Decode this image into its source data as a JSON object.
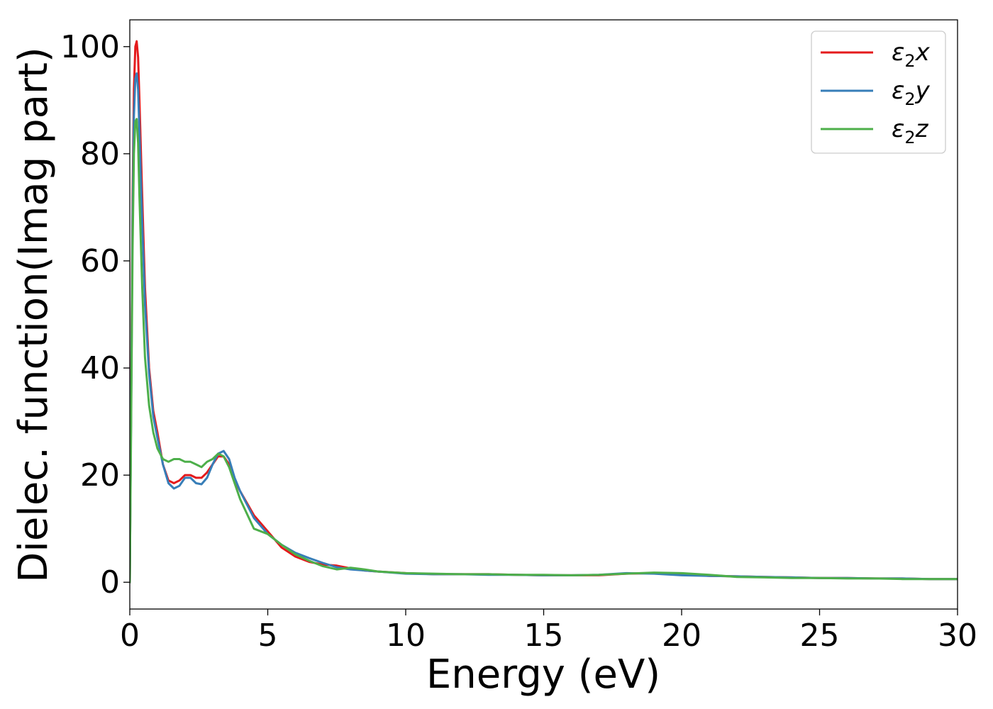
{
  "chart_data": {
    "type": "line",
    "xlabel": "Energy (eV)",
    "ylabel": "Dielec. function(Imag part)",
    "xlim": [
      0,
      30
    ],
    "ylim": [
      -5,
      105
    ],
    "xticks": [
      0,
      5,
      10,
      15,
      20,
      25,
      30
    ],
    "yticks": [
      0,
      20,
      40,
      60,
      80,
      100
    ],
    "xtick_labels": [
      "0",
      "5",
      "10",
      "15",
      "20",
      "25",
      "30"
    ],
    "ytick_labels": [
      "0",
      "20",
      "40",
      "60",
      "80",
      "100"
    ],
    "grid": false,
    "legend_position": "top-right",
    "series": [
      {
        "name": "ε₂x",
        "legend_base": "ε",
        "legend_sub": "2",
        "legend_var": "x",
        "color": "#e41a1c",
        "x": [
          0,
          0.05,
          0.1,
          0.15,
          0.2,
          0.25,
          0.3,
          0.35,
          0.45,
          0.55,
          0.7,
          0.85,
          1.0,
          1.2,
          1.4,
          1.6,
          1.8,
          2.0,
          2.2,
          2.4,
          2.6,
          2.8,
          3.0,
          3.2,
          3.4,
          3.6,
          3.8,
          4.0,
          4.5,
          5.0,
          5.5,
          6.0,
          6.5,
          7.0,
          7.5,
          8.0,
          8.5,
          9.0,
          10,
          11,
          12,
          13,
          14,
          15,
          16,
          17,
          18,
          19,
          20,
          21,
          22,
          23,
          24,
          25,
          26,
          27,
          28,
          29,
          30
        ],
        "y": [
          0,
          35,
          72,
          92,
          100,
          101,
          98,
          90,
          72,
          55,
          40,
          32,
          28,
          22,
          19,
          18.5,
          19,
          20,
          20,
          19.5,
          19.5,
          20.5,
          22,
          23.5,
          23.5,
          22,
          19,
          17,
          12.5,
          9.5,
          6.5,
          4.8,
          3.8,
          3.3,
          3.1,
          2.6,
          2.2,
          2,
          1.7,
          1.5,
          1.5,
          1.5,
          1.4,
          1.3,
          1.3,
          1.3,
          1.6,
          1.7,
          1.5,
          1.2,
          1.1,
          1.0,
          0.9,
          0.8,
          0.8,
          0.7,
          0.7,
          0.6,
          0.6
        ]
      },
      {
        "name": "ε₂y",
        "legend_base": "ε",
        "legend_sub": "2",
        "legend_var": "y",
        "color": "#377eb8",
        "x": [
          0,
          0.05,
          0.1,
          0.15,
          0.2,
          0.25,
          0.3,
          0.35,
          0.45,
          0.55,
          0.7,
          0.85,
          1.0,
          1.2,
          1.4,
          1.6,
          1.8,
          2.0,
          2.2,
          2.4,
          2.6,
          2.8,
          3.0,
          3.2,
          3.4,
          3.6,
          3.8,
          4.0,
          4.5,
          5.0,
          5.5,
          6.0,
          6.5,
          7.0,
          7.5,
          8.0,
          8.5,
          9.0,
          10,
          11,
          12,
          13,
          14,
          15,
          16,
          17,
          18,
          19,
          20,
          21,
          22,
          23,
          24,
          25,
          26,
          27,
          28,
          29,
          30
        ],
        "y": [
          0,
          33,
          68,
          87,
          94,
          95,
          92,
          84,
          67,
          52,
          39,
          31,
          27,
          22,
          18.5,
          17.5,
          18,
          19.5,
          19.5,
          18.5,
          18.3,
          19.5,
          22,
          24,
          24.5,
          23,
          19.5,
          17,
          12,
          9,
          7,
          5.5,
          4.5,
          3.6,
          2.8,
          2.4,
          2.2,
          2,
          1.6,
          1.5,
          1.5,
          1.4,
          1.4,
          1.3,
          1.3,
          1.4,
          1.7,
          1.6,
          1.3,
          1.2,
          1.1,
          1.0,
          0.9,
          0.8,
          0.8,
          0.7,
          0.7,
          0.6,
          0.6
        ]
      },
      {
        "name": "ε₂z",
        "legend_base": "ε",
        "legend_sub": "2",
        "legend_var": "z",
        "color": "#4daf4a",
        "x": [
          0,
          0.05,
          0.1,
          0.15,
          0.2,
          0.25,
          0.3,
          0.35,
          0.45,
          0.55,
          0.7,
          0.85,
          1.0,
          1.2,
          1.4,
          1.6,
          1.8,
          2.0,
          2.2,
          2.4,
          2.6,
          2.8,
          3.0,
          3.2,
          3.4,
          3.6,
          3.8,
          4.0,
          4.5,
          5.0,
          5.5,
          6.0,
          6.5,
          7.0,
          7.5,
          8.0,
          8.5,
          9.0,
          10,
          11,
          12,
          13,
          14,
          15,
          16,
          17,
          18,
          19,
          20,
          21,
          22,
          23,
          24,
          25,
          26,
          27,
          28,
          29,
          30
        ],
        "y": [
          0,
          30,
          62,
          80,
          86,
          86.5,
          82,
          72,
          55,
          42,
          33,
          28,
          25,
          23,
          22.5,
          23,
          23,
          22.5,
          22.5,
          22,
          21.5,
          22.5,
          23,
          24,
          23.5,
          21.5,
          18.5,
          15.5,
          10,
          9,
          7,
          5.2,
          4,
          3,
          2.4,
          2.7,
          2.4,
          2,
          1.7,
          1.6,
          1.5,
          1.5,
          1.4,
          1.4,
          1.3,
          1.4,
          1.6,
          1.8,
          1.7,
          1.4,
          1.0,
          0.9,
          0.8,
          0.8,
          0.7,
          0.7,
          0.6,
          0.6,
          0.6
        ]
      }
    ]
  }
}
